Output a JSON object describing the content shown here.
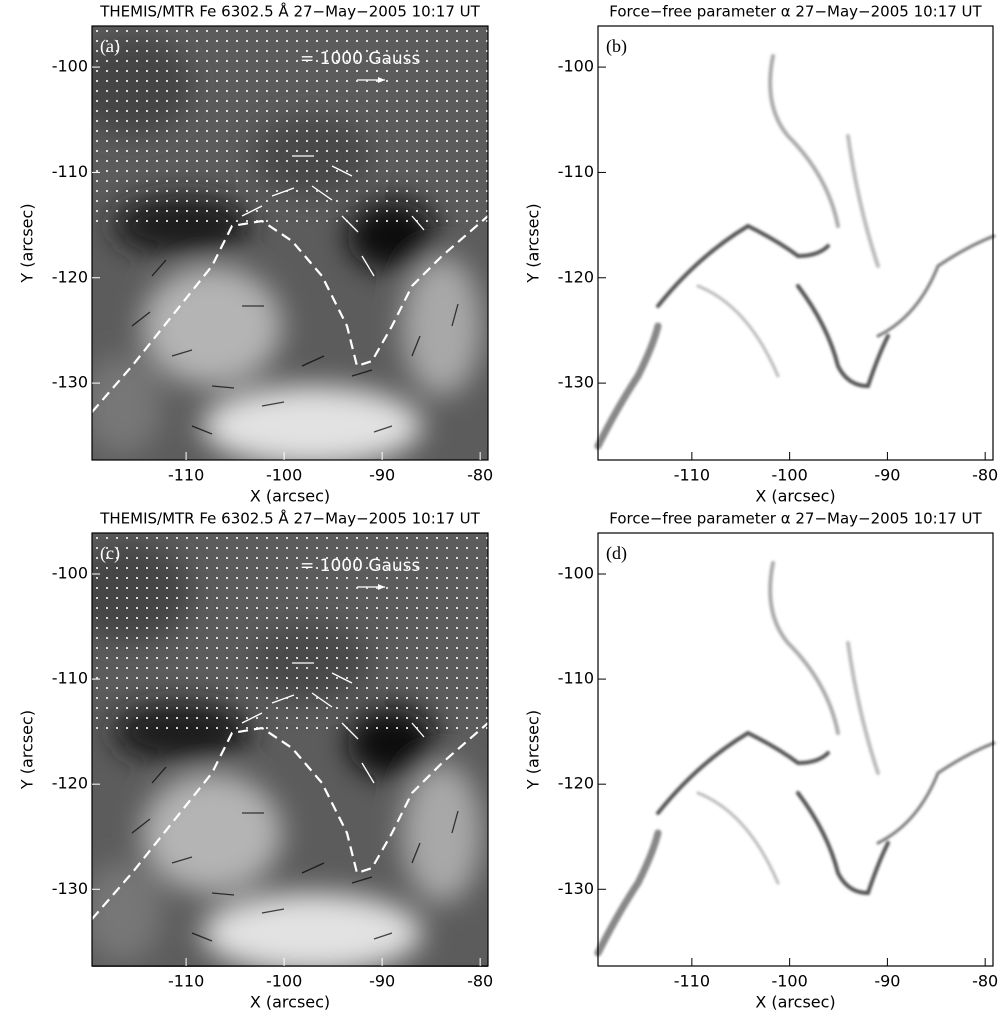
{
  "chart_data": [
    {
      "type": "image",
      "panel": "(a)",
      "title": "THEMIS/MTR Fe 6302.5 Å 27−May−2005 10:17 UT",
      "annotation": "= 1000 Gauss",
      "xlabel": "X (arcsec)",
      "ylabel": "Y (arcsec)",
      "xlim": [
        -119.6,
        -79.2
      ],
      "ylim": [
        -137.3,
        -96.1
      ],
      "xticks": [
        -110,
        -100,
        -90,
        -80
      ],
      "yticks": [
        -130,
        -120,
        -110,
        -100
      ]
    },
    {
      "type": "image",
      "panel": "(b)",
      "title": "Force−free parameter α 27−May−2005 10:17 UT",
      "xlabel": "X (arcsec)",
      "ylabel": "Y (arcsec)",
      "xlim": [
        -119.6,
        -79.2
      ],
      "ylim": [
        -137.3,
        -96.1
      ],
      "xticks": [
        -110,
        -100,
        -90,
        -80
      ],
      "yticks": [
        -130,
        -120,
        -110,
        -100
      ]
    },
    {
      "type": "image",
      "panel": "(c)",
      "title": "THEMIS/MTR Fe 6302.5 Å 27−May−2005 10:17 UT",
      "annotation": "= 1000 Gauss",
      "xlabel": "X (arcsec)",
      "ylabel": "Y (arcsec)",
      "xlim": [
        -119.6,
        -79.2
      ],
      "ylim": [
        -137.3,
        -96.1
      ],
      "xticks": [
        -110,
        -100,
        -90,
        -80
      ],
      "yticks": [
        -130,
        -120,
        -110,
        -100
      ]
    },
    {
      "type": "image",
      "panel": "(d)",
      "title": "Force−free parameter α 27−May−2005 10:17 UT",
      "xlabel": "X (arcsec)",
      "ylabel": "Y (arcsec)",
      "xlim": [
        -119.6,
        -79.2
      ],
      "ylim": [
        -137.3,
        -96.1
      ],
      "xticks": [
        -110,
        -100,
        -90,
        -80
      ],
      "yticks": [
        -130,
        -120,
        -110,
        -100
      ]
    }
  ]
}
